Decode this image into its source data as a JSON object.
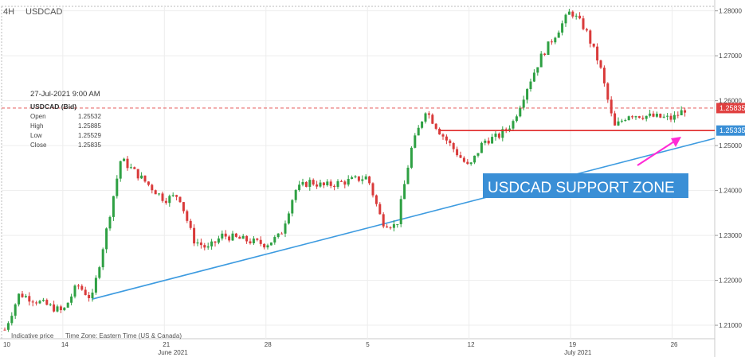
{
  "header": {
    "timeframe": "4H",
    "symbol": "USDCAD"
  },
  "info_panel": {
    "datetime": "27-Jul-2021 9:00 AM",
    "title": "USDCAD (Bid)",
    "rows": [
      {
        "label": "Open",
        "value": "1.25532"
      },
      {
        "label": "High",
        "value": "1.25885"
      },
      {
        "label": "Low",
        "value": "1.25529"
      },
      {
        "label": "Close",
        "value": "1.25835"
      }
    ]
  },
  "footer": {
    "indicative": "Indicative price",
    "timezone": "Time Zone: Eastern Time (US & Canada)"
  },
  "annotation": {
    "text": "USDCAD SUPPORT ZONE",
    "color": "#3a8fd6"
  },
  "price_labels": [
    {
      "text": "1.25835",
      "color": "#e04040"
    },
    {
      "text": "1.25335",
      "color": "#3a8fd6"
    }
  ],
  "colors": {
    "up": "#2ea043",
    "down": "#d93a3a",
    "trendline": "#3d9be0",
    "support": "#e02a2a",
    "arrow": "#ff2bd6"
  },
  "chart_data": {
    "type": "candlestick",
    "symbol": "USDCAD",
    "timeframe": "4H",
    "ylim": [
      1.207,
      1.281
    ],
    "y_ticks": [
      "1.28000",
      "1.27000",
      "1.26000",
      "1.25000",
      "1.24000",
      "1.23000",
      "1.22000",
      "1.21000"
    ],
    "x_ticks": [
      "10",
      "14",
      "21",
      "28",
      "5",
      "12",
      "19",
      "26"
    ],
    "x_months": [
      "June 2021",
      "July 2021"
    ],
    "current_price": 1.25835,
    "support_level": 1.25335,
    "trendline": {
      "from": {
        "date": "2021-06-16",
        "price": 1.2158
      },
      "to": {
        "date": "2021-07-27",
        "price": 1.25
      }
    },
    "path": [
      {
        "date": "2021-06-10",
        "price": 1.209
      },
      {
        "date": "2021-06-11",
        "price": 1.217
      },
      {
        "date": "2021-06-14",
        "price": 1.213
      },
      {
        "date": "2021-06-15",
        "price": 1.219
      },
      {
        "date": "2021-06-16",
        "price": 1.2158
      },
      {
        "date": "2021-06-17",
        "price": 1.231
      },
      {
        "date": "2021-06-18",
        "price": 1.247
      },
      {
        "date": "2021-06-21",
        "price": 1.238
      },
      {
        "date": "2021-06-22",
        "price": 1.239
      },
      {
        "date": "2021-06-23",
        "price": 1.229
      },
      {
        "date": "2021-06-24",
        "price": 1.227
      },
      {
        "date": "2021-06-25",
        "price": 1.23
      },
      {
        "date": "2021-06-28",
        "price": 1.228
      },
      {
        "date": "2021-06-29",
        "price": 1.23
      },
      {
        "date": "2021-06-30",
        "price": 1.24
      },
      {
        "date": "2021-07-01",
        "price": 1.242
      },
      {
        "date": "2021-07-02",
        "price": 1.241
      },
      {
        "date": "2021-07-05",
        "price": 1.243
      },
      {
        "date": "2021-07-06",
        "price": 1.233
      },
      {
        "date": "2021-07-07",
        "price": 1.232
      },
      {
        "date": "2021-07-08",
        "price": 1.249
      },
      {
        "date": "2021-07-09",
        "price": 1.258
      },
      {
        "date": "2021-07-10",
        "price": 1.253
      },
      {
        "date": "2021-07-12",
        "price": 1.245
      },
      {
        "date": "2021-07-13",
        "price": 1.251
      },
      {
        "date": "2021-07-14",
        "price": 1.252
      },
      {
        "date": "2021-07-15",
        "price": 1.255
      },
      {
        "date": "2021-07-16",
        "price": 1.263
      },
      {
        "date": "2021-07-17",
        "price": 1.27
      },
      {
        "date": "2021-07-19",
        "price": 1.28
      },
      {
        "date": "2021-07-20",
        "price": 1.276
      },
      {
        "date": "2021-07-21",
        "price": 1.268
      },
      {
        "date": "2021-07-22",
        "price": 1.254
      },
      {
        "date": "2021-07-23",
        "price": 1.257
      },
      {
        "date": "2021-07-26",
        "price": 1.256
      },
      {
        "date": "2021-07-27",
        "price": 1.25835
      }
    ]
  }
}
